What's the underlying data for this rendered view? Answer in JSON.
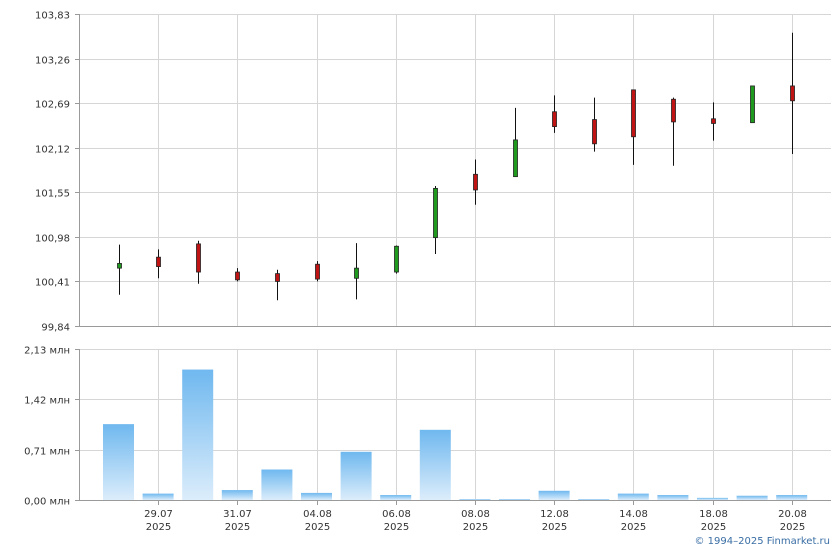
{
  "chart_data": [
    {
      "type": "candlestick",
      "title": "",
      "ylim": [
        99.84,
        103.83
      ],
      "y_ticks": [
        "103,83",
        "103,26",
        "102,69",
        "102,12",
        "101,55",
        "100,98",
        "100,41",
        "99,84"
      ],
      "grid": true,
      "candles": [
        {
          "open": 100.58,
          "high": 100.88,
          "low": 100.24,
          "close": 100.64
        },
        {
          "open": 100.72,
          "high": 100.82,
          "low": 100.45,
          "close": 100.6
        },
        {
          "open": 100.89,
          "high": 100.93,
          "low": 100.38,
          "close": 100.53
        },
        {
          "open": 100.53,
          "high": 100.58,
          "low": 100.41,
          "close": 100.43
        },
        {
          "open": 100.51,
          "high": 100.56,
          "low": 100.17,
          "close": 100.41
        },
        {
          "open": 100.63,
          "high": 100.67,
          "low": 100.41,
          "close": 100.44
        },
        {
          "open": 100.45,
          "high": 100.9,
          "low": 100.18,
          "close": 100.58
        },
        {
          "open": 100.53,
          "high": 100.87,
          "low": 100.51,
          "close": 100.86
        },
        {
          "open": 100.97,
          "high": 101.63,
          "low": 100.76,
          "close": 101.6
        },
        {
          "open": 101.78,
          "high": 101.97,
          "low": 101.39,
          "close": 101.58
        },
        {
          "open": 101.75,
          "high": 102.63,
          "low": 101.75,
          "close": 102.22
        },
        {
          "open": 102.58,
          "high": 102.79,
          "low": 102.31,
          "close": 102.39
        },
        {
          "open": 102.48,
          "high": 102.76,
          "low": 102.07,
          "close": 102.17
        },
        {
          "open": 102.86,
          "high": 102.86,
          "low": 101.9,
          "close": 102.26
        },
        {
          "open": 102.74,
          "high": 102.76,
          "low": 101.89,
          "close": 102.45
        },
        {
          "open": 102.49,
          "high": 102.7,
          "low": 102.21,
          "close": 102.43
        },
        {
          "open": 102.44,
          "high": 102.9,
          "low": 102.44,
          "close": 102.91
        },
        {
          "open": 102.91,
          "high": 103.59,
          "low": 102.04,
          "close": 102.72
        }
      ]
    },
    {
      "type": "bar",
      "series": [
        {
          "values": [
            1.07,
            0.09,
            1.84,
            0.14,
            0.43,
            0.1,
            0.68,
            0.07,
            0.99,
            0.01,
            0.01,
            0.13,
            0.01,
            0.09,
            0.07,
            0.03,
            0.06,
            0.07
          ]
        }
      ],
      "ylim": [
        0,
        2.13
      ],
      "y_ticks": [
        "2,13 млн",
        "1,42 млн",
        "0,71 млн",
        "0,00 млн"
      ],
      "x_ticks": [
        {
          "date": "29.07",
          "year": "2025"
        },
        {
          "date": "31.07",
          "year": "2025"
        },
        {
          "date": "04.08",
          "year": "2025"
        },
        {
          "date": "06.08",
          "year": "2025"
        },
        {
          "date": "08.08",
          "year": "2025"
        },
        {
          "date": "12.08",
          "year": "2025"
        },
        {
          "date": "14.08",
          "year": "2025"
        },
        {
          "date": "18.08",
          "year": "2025"
        },
        {
          "date": "20.08",
          "year": "2025"
        }
      ],
      "grid": true
    }
  ],
  "colors": {
    "grid": "#d6d6d6",
    "axis": "#9a9a9a",
    "up": "#1f9a1f",
    "down": "#c01414",
    "wick": "#111111",
    "volume_top": "#6fb8ef",
    "volume_bottom": "#dcedfb"
  },
  "footer": {
    "credit": "© 1994–2025 Finmarket.ru"
  }
}
